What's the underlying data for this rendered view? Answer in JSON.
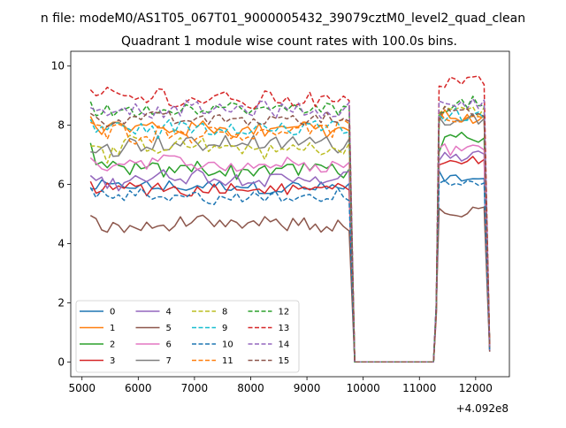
{
  "chart_data": {
    "type": "line",
    "title": "n file: modeM0/AS1T05_067T01_9000005432_39079cztM0_level2_quad_clean",
    "subtitle": "Quadrant 1 module wise count rates with 100.0s bins.",
    "xlabel": "",
    "ylabel": "",
    "x_offset_text": "+4.092e8",
    "xlim": [
      4800,
      12600
    ],
    "ylim": [
      -0.5,
      10.5
    ],
    "x_ticks": [
      5000,
      6000,
      7000,
      8000,
      9000,
      10000,
      11000,
      12000
    ],
    "y_ticks": [
      0,
      2,
      4,
      6,
      8,
      10
    ],
    "x_tick_labels": [
      "5000",
      "6000",
      "7000",
      "8000",
      "9000",
      "10000",
      "11000",
      "12000"
    ],
    "y_tick_labels": [
      "0",
      "2",
      "4",
      "6",
      "8",
      "10"
    ],
    "grid": false,
    "legend_position": "lower-left",
    "legend_columns": 4,
    "segments": [
      {
        "x_start": 5150,
        "x_end": 9750,
        "step": 100
      },
      {
        "x_start": 11350,
        "x_end": 12250,
        "step": 100
      }
    ],
    "gap": {
      "x": [
        9850,
        11250
      ],
      "y": 0
    },
    "series": [
      {
        "name": "0",
        "color": "#1f77b4",
        "dash": "solid",
        "level": 5.9,
        "noise": 0.25,
        "post": 6.2,
        "post_noise": 0.25,
        "first": 5.85,
        "last": 0.45
      },
      {
        "name": "1",
        "color": "#ff7f0e",
        "dash": "solid",
        "level": 7.9,
        "noise": 0.3,
        "post": 8.2,
        "post_noise": 0.3,
        "first": 8.3,
        "last": 0.5
      },
      {
        "name": "2",
        "color": "#2ca02c",
        "dash": "solid",
        "level": 6.5,
        "noise": 0.3,
        "post": 7.4,
        "post_noise": 0.3,
        "first": 7.4,
        "last": 0.4
      },
      {
        "name": "3",
        "color": "#d62728",
        "dash": "solid",
        "level": 5.9,
        "noise": 0.25,
        "post": 6.7,
        "post_noise": 0.2,
        "first": 6.1,
        "last": 0.4
      },
      {
        "name": "4",
        "color": "#9467bd",
        "dash": "solid",
        "level": 6.2,
        "noise": 0.3,
        "post": 6.9,
        "post_noise": 0.25,
        "first": 6.3,
        "last": 0.35
      },
      {
        "name": "5",
        "color": "#8c564b",
        "dash": "solid",
        "level": 4.6,
        "noise": 0.3,
        "post": 5.0,
        "post_noise": 0.25,
        "first": 4.95,
        "last": 0.35
      },
      {
        "name": "6",
        "color": "#e377c2",
        "dash": "solid",
        "level": 6.7,
        "noise": 0.25,
        "post": 7.2,
        "post_noise": 0.25,
        "first": 6.9,
        "last": 0.4
      },
      {
        "name": "7",
        "color": "#7f7f7f",
        "dash": "solid",
        "level": 7.4,
        "noise": 0.3,
        "post": 8.3,
        "post_noise": 0.3,
        "first": 7.1,
        "last": 0.45
      },
      {
        "name": "8",
        "color": "#bcbd22",
        "dash": "dashed",
        "level": 7.2,
        "noise": 0.35,
        "post": 8.5,
        "post_noise": 0.3,
        "first": 7.3,
        "last": 0.45
      },
      {
        "name": "9",
        "color": "#17becf",
        "dash": "dashed",
        "level": 7.9,
        "noise": 0.3,
        "post": 8.3,
        "post_noise": 0.3,
        "first": 8.2,
        "last": 0.5
      },
      {
        "name": "10",
        "color": "#1f77b4",
        "dash": "dashed",
        "level": 5.6,
        "noise": 0.25,
        "post": 6.0,
        "post_noise": 0.25,
        "first": 5.9,
        "last": 0.4
      },
      {
        "name": "11",
        "color": "#ff7f0e",
        "dash": "dashed",
        "level": 7.8,
        "noise": 0.35,
        "post": 8.3,
        "post_noise": 0.3,
        "first": 8.1,
        "last": 0.5
      },
      {
        "name": "12",
        "color": "#2ca02c",
        "dash": "dashed",
        "level": 8.5,
        "noise": 0.25,
        "post": 8.7,
        "post_noise": 0.3,
        "first": 8.8,
        "last": 0.5
      },
      {
        "name": "13",
        "color": "#d62728",
        "dash": "dashed",
        "level": 8.9,
        "noise": 0.35,
        "post": 9.6,
        "post_noise": 0.3,
        "first": 9.2,
        "last": 0.55
      },
      {
        "name": "14",
        "color": "#9467bd",
        "dash": "dashed",
        "level": 8.5,
        "noise": 0.3,
        "post": 8.8,
        "post_noise": 0.3,
        "first": 8.6,
        "last": 0.5
      },
      {
        "name": "15",
        "color": "#8c564b",
        "dash": "dashed",
        "level": 8.2,
        "noise": 0.25,
        "post": 8.5,
        "post_noise": 0.3,
        "first": 8.4,
        "last": 0.5
      }
    ]
  }
}
